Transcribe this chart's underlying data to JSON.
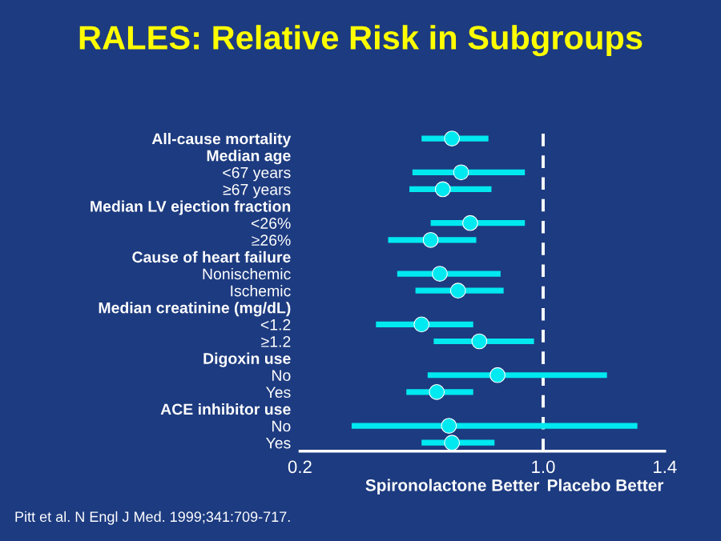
{
  "chart_data": {
    "type": "scatter",
    "orientation": "horizontal",
    "title": "RALES: Relative Risk in Subgroups",
    "categories": [
      "All-cause mortality",
      "Median age",
      "<67 years",
      "≥67 years",
      "Median LV ejection fraction",
      "<26%",
      "≥26%",
      "Cause of heart failure",
      "Nonischemic",
      "Ischemic",
      "Median creatinine (mg/dL)",
      "<1.2",
      "≥1.2",
      "Digoxin use",
      "No",
      "Yes",
      "ACE inhibitor use",
      "No",
      "Yes"
    ],
    "values": [
      0.7,
      null,
      0.73,
      0.67,
      null,
      0.76,
      0.63,
      null,
      0.66,
      0.72,
      null,
      0.6,
      0.79,
      null,
      0.85,
      0.65,
      null,
      0.69,
      0.7
    ],
    "errors": [
      [
        0.6,
        0.82
      ],
      null,
      [
        0.57,
        0.94
      ],
      [
        0.56,
        0.83
      ],
      null,
      [
        0.63,
        0.94
      ],
      [
        0.49,
        0.78
      ],
      null,
      [
        0.52,
        0.86
      ],
      [
        0.58,
        0.87
      ],
      null,
      [
        0.45,
        0.77
      ],
      [
        0.64,
        0.97
      ],
      null,
      [
        0.62,
        1.21
      ],
      [
        0.55,
        0.77
      ],
      null,
      [
        0.37,
        1.31
      ],
      [
        0.6,
        0.84
      ]
    ],
    "color": "#00e8f0",
    "marker": "circle",
    "xlim": [
      0.2,
      1.4
    ],
    "xticks": [
      0.2,
      {
        "value": 1.0,
        "label": "1.0"
      },
      1.4
    ],
    "grid": false,
    "ref_lines": [
      {
        "axis": "x",
        "value": 1.0,
        "color": "#ffffff",
        "line_style": "dashed"
      }
    ],
    "annotations": [
      "Spironolactone Better",
      "Placebo Better",
      "Pitt et al. N Engl J Med. 1999;341:709-717."
    ]
  }
}
